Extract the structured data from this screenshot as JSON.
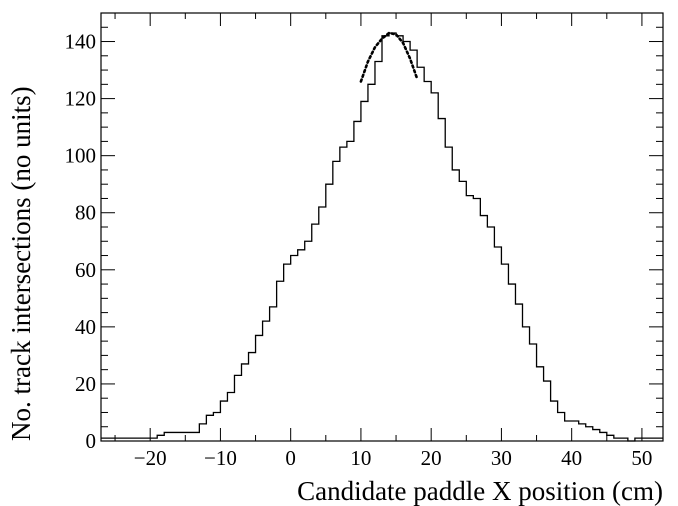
{
  "chart_data": {
    "type": "histogram",
    "title": "",
    "xlabel": "Candidate paddle X position (cm)",
    "ylabel": "No. track intersections (no units)",
    "xlim": [
      -27,
      53
    ],
    "ylim": [
      0,
      150
    ],
    "bin_width": 1,
    "x_ticks": [
      -20,
      -10,
      0,
      10,
      20,
      30,
      40,
      50
    ],
    "x_tick_labels": [
      "−20",
      "−10",
      "0",
      "10",
      "20",
      "30",
      "40",
      "50"
    ],
    "y_ticks": [
      0,
      20,
      40,
      60,
      80,
      100,
      120,
      140
    ],
    "y_tick_labels": [
      "0",
      "20",
      "40",
      "60",
      "80",
      "100",
      "120",
      "140"
    ],
    "grid": false,
    "legend": "none",
    "series": [
      {
        "style": "solid-step",
        "color": "#000000",
        "bin_edges": [
          -27,
          -26,
          -25,
          -24,
          -23,
          -22,
          -21,
          -20,
          -19,
          -18,
          -17,
          -16,
          -15,
          -14,
          -13,
          -12,
          -11,
          -10,
          -9,
          -8,
          -7,
          -6,
          -5,
          -4,
          -3,
          -2,
          -1,
          0,
          1,
          2,
          3,
          4,
          5,
          6,
          7,
          8,
          9,
          10,
          11,
          12,
          13,
          14,
          15,
          16,
          17,
          18,
          19,
          20,
          21,
          22,
          23,
          24,
          25,
          26,
          27,
          28,
          29,
          30,
          31,
          32,
          33,
          34,
          35,
          36,
          37,
          38,
          39,
          40,
          41,
          42,
          43,
          44,
          45,
          46,
          47,
          48,
          49,
          50,
          51,
          52,
          53
        ],
        "values": [
          1,
          1,
          1,
          1,
          1,
          1,
          1,
          1,
          2,
          3,
          3,
          3,
          3,
          3,
          6,
          9,
          10,
          14,
          17,
          23,
          27,
          31,
          37,
          42,
          47,
          56,
          62,
          65,
          67,
          70,
          76,
          82,
          90,
          98,
          103,
          105,
          112,
          119,
          125,
          133,
          142,
          143,
          142,
          140,
          137,
          131,
          126,
          122,
          113,
          103,
          95,
          91,
          86,
          85,
          79,
          75,
          68,
          62,
          55,
          48,
          40,
          34,
          26,
          21,
          14,
          10,
          7,
          7,
          6,
          5,
          4,
          3,
          2,
          1,
          1,
          0,
          1,
          1,
          1,
          1
        ]
      },
      {
        "style": "dotted-fit",
        "color": "#000000",
        "x": [
          10,
          11,
          12,
          13,
          14,
          15,
          16,
          17,
          18
        ],
        "values": [
          126,
          133,
          138,
          141,
          143,
          142.5,
          139.5,
          134,
          127
        ]
      }
    ]
  }
}
